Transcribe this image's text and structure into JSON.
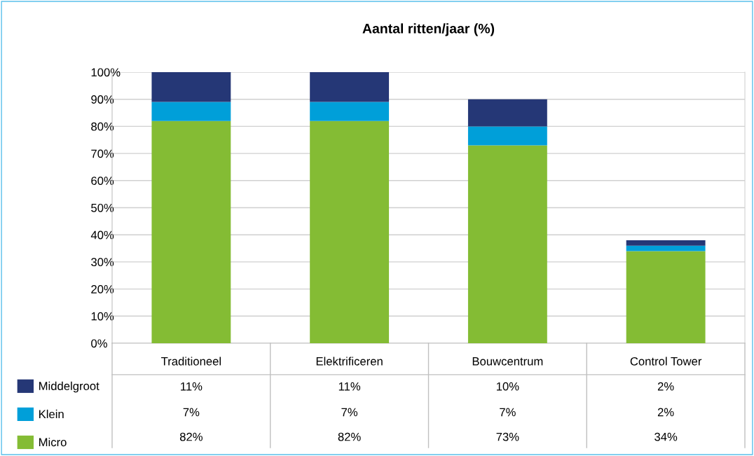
{
  "chart_data": {
    "type": "bar",
    "title": "Aantal ritten/jaar (%)",
    "categories": [
      "Traditioneel",
      "Elektrificeren",
      "Bouwcentrum",
      "Control Tower"
    ],
    "stacked": true,
    "series": [
      {
        "name": "Micro",
        "color": "#84bc34",
        "values": [
          82,
          82,
          73,
          34
        ],
        "value_labels": [
          "82%",
          "82%",
          "73%",
          "34%"
        ]
      },
      {
        "name": "Klein",
        "color": "#009fd9",
        "values": [
          7,
          7,
          7,
          2
        ],
        "value_labels": [
          "7%",
          "7%",
          "7%",
          "2%"
        ]
      },
      {
        "name": "Middelgroot",
        "color": "#253776",
        "values": [
          11,
          11,
          10,
          2
        ],
        "value_labels": [
          "11%",
          "11%",
          "10%",
          "2%"
        ]
      }
    ],
    "ylim": [
      0,
      100
    ],
    "yticks": [
      {
        "value": 0,
        "label": "0%"
      },
      {
        "value": 10,
        "label": "10%"
      },
      {
        "value": 20,
        "label": "20%"
      },
      {
        "value": 30,
        "label": "30%"
      },
      {
        "value": 40,
        "label": "40%"
      },
      {
        "value": 50,
        "label": "50%"
      },
      {
        "value": 60,
        "label": "60%"
      },
      {
        "value": 70,
        "label": "70%"
      },
      {
        "value": 80,
        "label": "80%"
      },
      {
        "value": 90,
        "label": "90%"
      },
      {
        "value": 100,
        "label": "100%"
      }
    ],
    "grid": "y",
    "legend": "bottom left"
  }
}
